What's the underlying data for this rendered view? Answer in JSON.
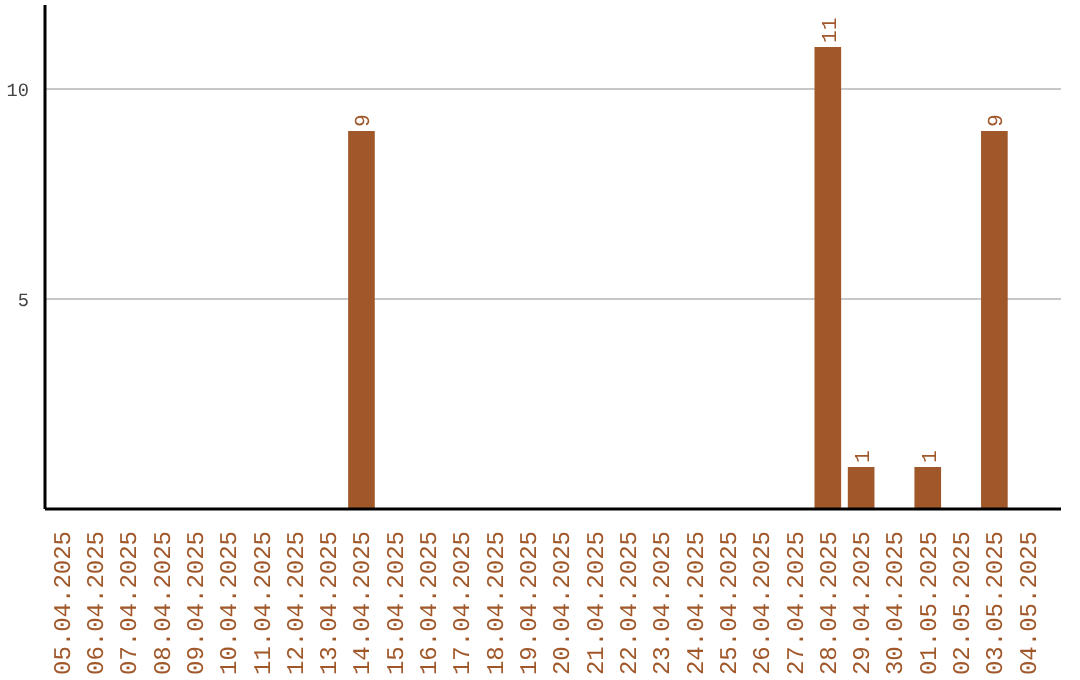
{
  "chart_data": {
    "type": "bar",
    "categories": [
      "05.04.2025",
      "06.04.2025",
      "07.04.2025",
      "08.04.2025",
      "09.04.2025",
      "10.04.2025",
      "11.04.2025",
      "12.04.2025",
      "13.04.2025",
      "14.04.2025",
      "15.04.2025",
      "16.04.2025",
      "17.04.2025",
      "18.04.2025",
      "19.04.2025",
      "20.04.2025",
      "21.04.2025",
      "22.04.2025",
      "23.04.2025",
      "24.04.2025",
      "25.04.2025",
      "26.04.2025",
      "27.04.2025",
      "28.04.2025",
      "29.04.2025",
      "30.04.2025",
      "01.05.2025",
      "02.05.2025",
      "03.05.2025",
      "04.05.2025"
    ],
    "values": [
      0,
      0,
      0,
      0,
      0,
      0,
      0,
      0,
      0,
      9,
      0,
      0,
      0,
      0,
      0,
      0,
      0,
      0,
      0,
      0,
      0,
      0,
      0,
      11,
      1,
      0,
      1,
      0,
      9,
      0
    ],
    "value_labels": [
      null,
      null,
      null,
      null,
      null,
      null,
      null,
      null,
      null,
      "9",
      null,
      null,
      null,
      null,
      null,
      null,
      null,
      null,
      null,
      null,
      null,
      null,
      null,
      "11",
      "1",
      null,
      "1",
      null,
      "9",
      null
    ],
    "color": "#a0582a",
    "ylim": [
      0,
      12
    ],
    "yticks": [
      5,
      10
    ],
    "grid": "y"
  }
}
